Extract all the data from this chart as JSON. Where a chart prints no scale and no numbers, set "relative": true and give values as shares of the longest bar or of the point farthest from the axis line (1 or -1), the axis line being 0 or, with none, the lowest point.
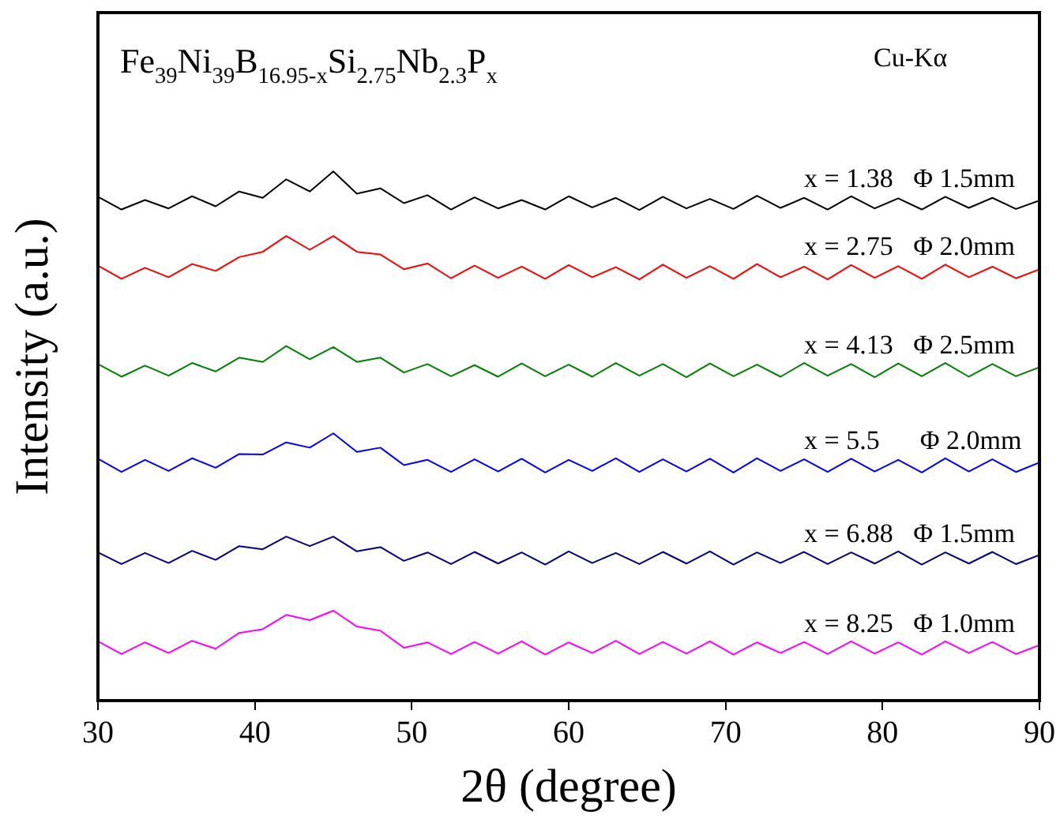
{
  "chart_data": {
    "type": "line",
    "title": "Fe$_{39}$Ni$_{39}$B$_{16.95-x}$Si$_{2.75}$Nb$_{2.3}$P$_{x}$",
    "annotations": [
      "Cu-Kα"
    ],
    "xlabel": "2θ (degree)",
    "ylabel": "Intensity (a.u.)",
    "relative": true,
    "xlim": [
      30,
      90
    ],
    "xticks": [
      30,
      40,
      50,
      60,
      70,
      80,
      90
    ],
    "tick_labels": "x",
    "grid": false,
    "legend": false,
    "marker": "none",
    "line_style": "solid",
    "x": [
      30,
      31.5,
      33,
      34.5,
      36,
      37.5,
      39,
      40.5,
      42,
      43.5,
      45,
      46.5,
      48,
      49.5,
      51,
      52.5,
      54,
      55.5,
      57,
      58.5,
      60,
      61.5,
      63,
      64.5,
      66,
      67.5,
      69,
      70.5,
      72,
      73.5,
      75,
      76.5,
      78,
      79.5,
      81,
      82.5,
      84,
      85.5,
      87,
      88.5,
      90
    ],
    "series": [
      {
        "name": "x = 1.38   Φ 1.5mm",
        "color": "#000000",
        "values": [
          0.952,
          0.928,
          0.946,
          0.93,
          0.953,
          0.934,
          0.962,
          0.95,
          0.985,
          0.962,
          1.0,
          0.958,
          0.968,
          0.94,
          0.955,
          0.928,
          0.951,
          0.93,
          0.946,
          0.928,
          0.953,
          0.932,
          0.95,
          0.927,
          0.952,
          0.93,
          0.948,
          0.929,
          0.954,
          0.931,
          0.95,
          0.928,
          0.953,
          0.93,
          0.949,
          0.928,
          0.952,
          0.931,
          0.95,
          0.929,
          0.945
        ]
      },
      {
        "name": "x = 2.75   Φ 2.0mm",
        "color": "#ff0000",
        "values": [
          0.822,
          0.797,
          0.818,
          0.8,
          0.825,
          0.812,
          0.838,
          0.848,
          0.878,
          0.852,
          0.878,
          0.848,
          0.843,
          0.815,
          0.826,
          0.798,
          0.822,
          0.799,
          0.82,
          0.797,
          0.823,
          0.8,
          0.819,
          0.796,
          0.824,
          0.799,
          0.821,
          0.797,
          0.825,
          0.8,
          0.82,
          0.796,
          0.823,
          0.799,
          0.821,
          0.797,
          0.824,
          0.8,
          0.82,
          0.798,
          0.815
        ]
      },
      {
        "name": "x = 4.13   Φ 2.5mm",
        "color": "#008000",
        "values": [
          0.636,
          0.612,
          0.633,
          0.614,
          0.638,
          0.622,
          0.648,
          0.64,
          0.67,
          0.645,
          0.668,
          0.64,
          0.648,
          0.62,
          0.636,
          0.613,
          0.634,
          0.612,
          0.637,
          0.613,
          0.635,
          0.612,
          0.638,
          0.614,
          0.636,
          0.611,
          0.637,
          0.613,
          0.635,
          0.612,
          0.638,
          0.614,
          0.636,
          0.611,
          0.637,
          0.613,
          0.638,
          0.612,
          0.636,
          0.613,
          0.63
        ]
      },
      {
        "name": "x = 5.5      Φ 2.0mm",
        "color": "#0000ff",
        "values": [
          0.457,
          0.432,
          0.455,
          0.434,
          0.458,
          0.44,
          0.466,
          0.465,
          0.488,
          0.478,
          0.505,
          0.47,
          0.478,
          0.445,
          0.455,
          0.432,
          0.456,
          0.433,
          0.457,
          0.431,
          0.455,
          0.434,
          0.458,
          0.432,
          0.456,
          0.433,
          0.457,
          0.431,
          0.458,
          0.434,
          0.456,
          0.432,
          0.457,
          0.433,
          0.455,
          0.431,
          0.458,
          0.433,
          0.456,
          0.432,
          0.45
        ]
      },
      {
        "name": "x = 6.88   Φ 1.5mm",
        "color": "#000080",
        "values": [
          0.28,
          0.258,
          0.279,
          0.26,
          0.283,
          0.266,
          0.292,
          0.286,
          0.31,
          0.292,
          0.31,
          0.282,
          0.29,
          0.264,
          0.28,
          0.258,
          0.281,
          0.259,
          0.28,
          0.257,
          0.282,
          0.26,
          0.279,
          0.258,
          0.281,
          0.259,
          0.282,
          0.257,
          0.28,
          0.26,
          0.281,
          0.258,
          0.28,
          0.259,
          0.282,
          0.257,
          0.28,
          0.259,
          0.281,
          0.258,
          0.275
        ]
      },
      {
        "name": "x = 8.25   Φ 1.0mm",
        "color": "#ff00ff",
        "values": [
          0.112,
          0.088,
          0.11,
          0.09,
          0.113,
          0.098,
          0.128,
          0.135,
          0.162,
          0.152,
          0.17,
          0.14,
          0.132,
          0.1,
          0.11,
          0.088,
          0.111,
          0.089,
          0.112,
          0.087,
          0.11,
          0.09,
          0.113,
          0.088,
          0.111,
          0.089,
          0.112,
          0.087,
          0.11,
          0.09,
          0.111,
          0.088,
          0.112,
          0.089,
          0.11,
          0.087,
          0.112,
          0.09,
          0.111,
          0.088,
          0.105
        ]
      }
    ]
  }
}
